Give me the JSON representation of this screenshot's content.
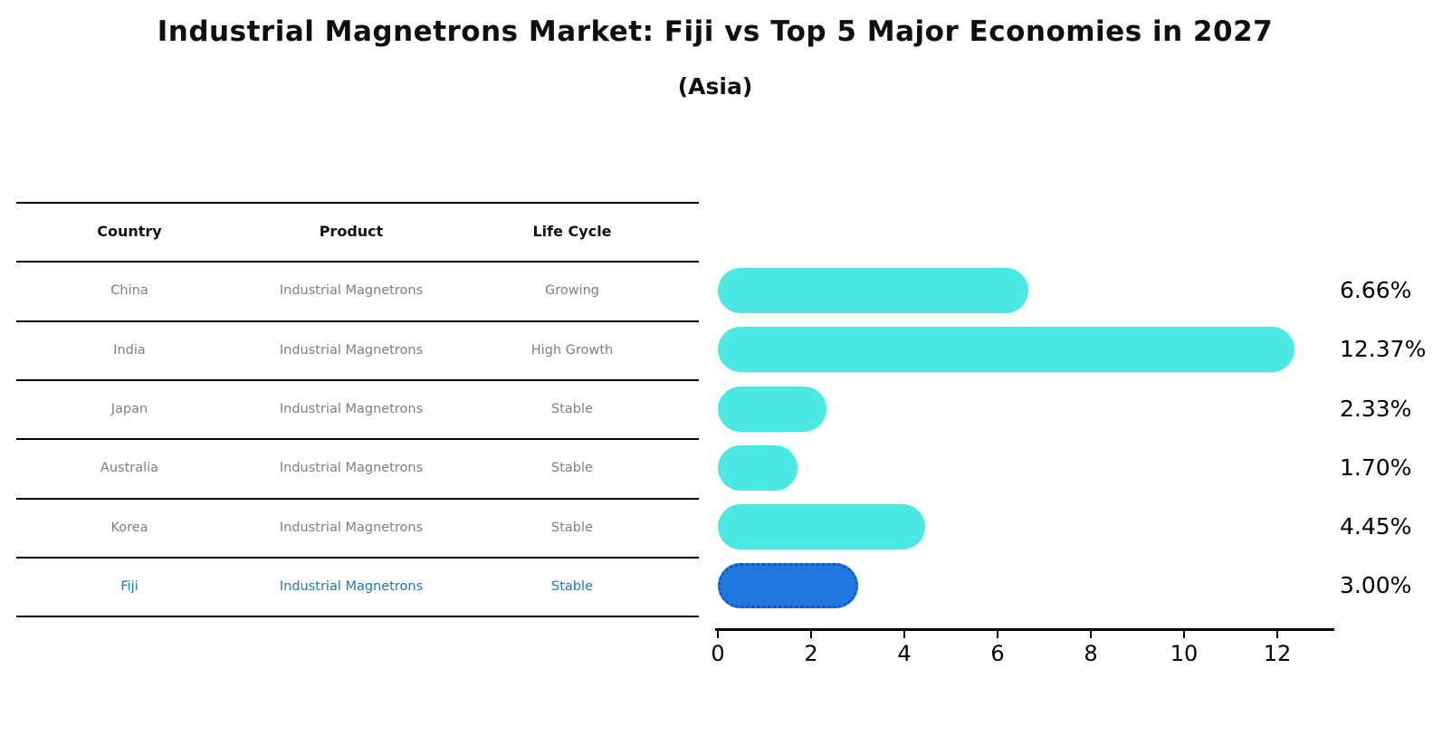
{
  "title": "Industrial Magnetrons Market: Fiji vs Top 5 Major Economies in 2027",
  "subtitle": "(Asia)",
  "table": {
    "headers": [
      "Country",
      "Product",
      "Life Cycle"
    ],
    "rows": [
      {
        "country": "China",
        "product": "Industrial Magnetrons",
        "life_cycle": "Growing",
        "highlight": false
      },
      {
        "country": "India",
        "product": "Industrial Magnetrons",
        "life_cycle": "High Growth",
        "highlight": false
      },
      {
        "country": "Japan",
        "product": "Industrial Magnetrons",
        "life_cycle": "Stable",
        "highlight": false
      },
      {
        "country": "Australia",
        "product": "Industrial Magnetrons",
        "life_cycle": "Stable",
        "highlight": false
      },
      {
        "country": "Korea",
        "product": "Industrial Magnetrons",
        "life_cycle": "Stable",
        "highlight": false
      },
      {
        "country": "Fiji",
        "product": "Industrial Magnetrons",
        "life_cycle": "Stable",
        "highlight": true
      }
    ]
  },
  "chart_data": {
    "type": "bar",
    "orientation": "horizontal",
    "categories": [
      "China",
      "India",
      "Japan",
      "Australia",
      "Korea",
      "Fiji"
    ],
    "values": [
      6.66,
      12.37,
      2.33,
      1.7,
      4.45,
      3.0
    ],
    "value_labels": [
      "6.66%",
      "12.37%",
      "2.33%",
      "1.70%",
      "4.45%",
      "3.00%"
    ],
    "xticks": [
      0,
      2,
      4,
      6,
      8,
      10,
      12
    ],
    "xlim": [
      0,
      13.2
    ],
    "grid": false,
    "legend_position": "none",
    "bar_color": "#4be8e4",
    "highlight_index": 5,
    "highlight_bar_color": "#1e78e0",
    "highlight_border_color": "#1355c8",
    "highlight_text_color": "#1f77b4"
  }
}
